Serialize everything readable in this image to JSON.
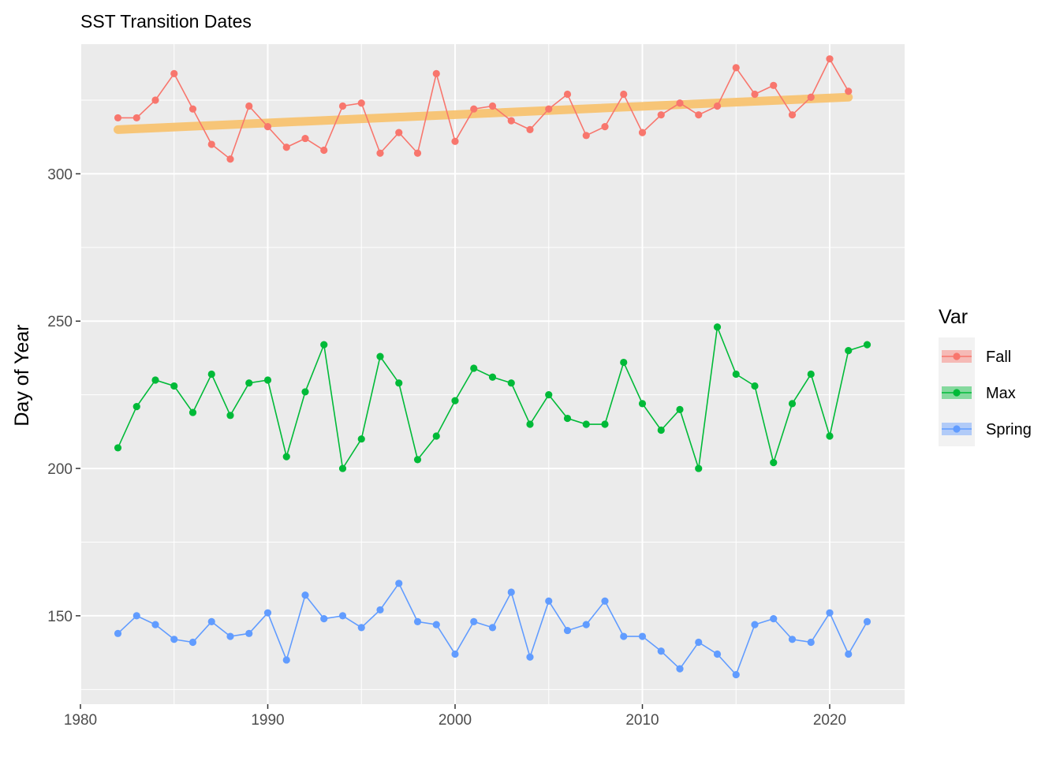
{
  "chart_data": {
    "type": "line",
    "title": "SST Transition Dates",
    "xlabel": "",
    "ylabel": "Day of Year",
    "xlim": [
      1980,
      2024
    ],
    "ylim": [
      120,
      344
    ],
    "x_ticks": [
      1980,
      1990,
      2000,
      2010,
      2020
    ],
    "y_ticks": [
      150,
      200,
      250,
      300
    ],
    "grid": true,
    "legend": {
      "title": "Var",
      "position": "right"
    },
    "series": [
      {
        "name": "Fall",
        "color": "#F8766D",
        "x": [
          1982,
          1983,
          1984,
          1985,
          1986,
          1987,
          1988,
          1989,
          1990,
          1991,
          1992,
          1993,
          1994,
          1995,
          1996,
          1997,
          1998,
          1999,
          2000,
          2001,
          2002,
          2003,
          2004,
          2005,
          2006,
          2007,
          2008,
          2009,
          2010,
          2011,
          2012,
          2013,
          2014,
          2015,
          2016,
          2017,
          2018,
          2019,
          2020,
          2021
        ],
        "values": [
          319,
          319,
          325,
          334,
          322,
          310,
          305,
          323,
          316,
          309,
          312,
          308,
          323,
          324,
          307,
          314,
          307,
          334,
          311,
          322,
          323,
          318,
          315,
          322,
          327,
          313,
          316,
          327,
          314,
          320,
          324,
          320,
          323,
          336,
          327,
          330,
          320,
          326,
          339,
          328
        ]
      },
      {
        "name": "Max",
        "color": "#00BA38",
        "x": [
          1982,
          1983,
          1984,
          1985,
          1986,
          1987,
          1988,
          1989,
          1990,
          1991,
          1992,
          1993,
          1994,
          1995,
          1996,
          1997,
          1998,
          1999,
          2000,
          2001,
          2002,
          2003,
          2004,
          2005,
          2006,
          2007,
          2008,
          2009,
          2010,
          2011,
          2012,
          2013,
          2014,
          2015,
          2016,
          2017,
          2018,
          2019,
          2020,
          2021,
          2022
        ],
        "values": [
          207,
          221,
          230,
          228,
          219,
          232,
          218,
          229,
          230,
          204,
          226,
          242,
          200,
          210,
          238,
          229,
          203,
          211,
          223,
          234,
          231,
          229,
          215,
          225,
          217,
          215,
          215,
          236,
          222,
          213,
          220,
          200,
          248,
          232,
          228,
          202,
          222,
          232,
          211,
          240,
          242
        ]
      },
      {
        "name": "Spring",
        "color": "#619CFF",
        "x": [
          1982,
          1983,
          1984,
          1985,
          1986,
          1987,
          1988,
          1989,
          1990,
          1991,
          1992,
          1993,
          1994,
          1995,
          1996,
          1997,
          1998,
          1999,
          2000,
          2001,
          2002,
          2003,
          2004,
          2005,
          2006,
          2007,
          2008,
          2009,
          2010,
          2011,
          2012,
          2013,
          2014,
          2015,
          2016,
          2017,
          2018,
          2019,
          2020,
          2021,
          2022
        ],
        "values": [
          144,
          150,
          147,
          142,
          141,
          148,
          143,
          144,
          151,
          135,
          157,
          149,
          150,
          146,
          152,
          161,
          148,
          147,
          137,
          148,
          146,
          158,
          136,
          155,
          145,
          147,
          155,
          143,
          143,
          138,
          132,
          141,
          137,
          130,
          147,
          149,
          142,
          141,
          151,
          137,
          148
        ]
      }
    ],
    "trend": {
      "color": "#F8C471",
      "x": [
        1982,
        2021
      ],
      "values": [
        315,
        326
      ]
    }
  }
}
